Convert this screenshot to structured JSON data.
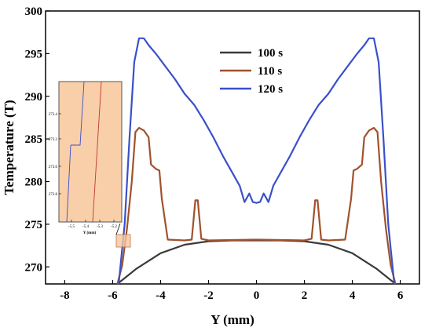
{
  "chart_data": {
    "type": "line",
    "title": "",
    "xlabel": "Y (mm)",
    "ylabel": "Temperature (T)",
    "xlim": [
      -8.8,
      6.8
    ],
    "ylim": [
      268,
      300
    ],
    "xticks": [
      "-8",
      "-6",
      "-4",
      "-2",
      "0",
      "2",
      "4",
      "6"
    ],
    "yticks": [
      "270",
      "275",
      "280",
      "285",
      "290",
      "295",
      "300"
    ],
    "grid": false,
    "legend": "upper-center",
    "colors": {
      "100 s": "#3a3a3a",
      "110 s": "#a0522d",
      "120 s": "#3a50c8"
    },
    "series": [
      {
        "name": "100 s",
        "points": [
          [
            -5.8,
            268
          ],
          [
            -5.0,
            269.8
          ],
          [
            -4.0,
            271.6
          ],
          [
            -3.0,
            272.6
          ],
          [
            -2.0,
            273.0
          ],
          [
            -1.0,
            273.1
          ],
          [
            0.0,
            273.1
          ],
          [
            1.0,
            273.1
          ],
          [
            2.0,
            273.0
          ],
          [
            3.0,
            272.6
          ],
          [
            4.0,
            271.6
          ],
          [
            5.0,
            269.8
          ],
          [
            5.8,
            268
          ]
        ]
      },
      {
        "name": "110 s",
        "points": [
          [
            -5.8,
            268
          ],
          [
            -5.6,
            270.2
          ],
          [
            -5.4,
            274.5
          ],
          [
            -5.2,
            280
          ],
          [
            -5.05,
            285.8
          ],
          [
            -4.9,
            286.3
          ],
          [
            -4.7,
            286.0
          ],
          [
            -4.5,
            285.2
          ],
          [
            -4.4,
            282.0
          ],
          [
            -4.2,
            281.5
          ],
          [
            -4.05,
            281.3
          ],
          [
            -3.95,
            278.0
          ],
          [
            -3.7,
            273.2
          ],
          [
            -3.0,
            273.1
          ],
          [
            -2.7,
            273.2
          ],
          [
            -2.55,
            277.8
          ],
          [
            -2.45,
            277.8
          ],
          [
            -2.3,
            273.3
          ],
          [
            -2.0,
            273.1
          ],
          [
            0.0,
            273.2
          ],
          [
            2.0,
            273.1
          ],
          [
            2.3,
            273.3
          ],
          [
            2.45,
            277.8
          ],
          [
            2.55,
            277.8
          ],
          [
            2.7,
            273.2
          ],
          [
            3.0,
            273.1
          ],
          [
            3.7,
            273.2
          ],
          [
            3.95,
            278.0
          ],
          [
            4.05,
            281.3
          ],
          [
            4.2,
            281.5
          ],
          [
            4.4,
            282.0
          ],
          [
            4.5,
            285.2
          ],
          [
            4.7,
            286.0
          ],
          [
            4.9,
            286.3
          ],
          [
            5.05,
            285.8
          ],
          [
            5.2,
            280
          ],
          [
            5.4,
            274.5
          ],
          [
            5.6,
            270.2
          ],
          [
            5.8,
            268
          ]
        ]
      },
      {
        "name": "120 s",
        "points": [
          [
            -5.75,
            268
          ],
          [
            -5.5,
            275
          ],
          [
            -5.3,
            285
          ],
          [
            -5.1,
            294
          ],
          [
            -4.9,
            296.8
          ],
          [
            -4.7,
            296.8
          ],
          [
            -4.5,
            296.0
          ],
          [
            -4.2,
            295.0
          ],
          [
            -3.8,
            293.5
          ],
          [
            -3.4,
            292.0
          ],
          [
            -3.0,
            290.3
          ],
          [
            -2.6,
            289.0
          ],
          [
            -2.2,
            287.2
          ],
          [
            -1.8,
            285.2
          ],
          [
            -1.4,
            283.0
          ],
          [
            -1.0,
            281.0
          ],
          [
            -0.7,
            279.5
          ],
          [
            -0.5,
            277.6
          ],
          [
            -0.3,
            278.6
          ],
          [
            -0.15,
            277.6
          ],
          [
            0.0,
            277.5
          ],
          [
            0.15,
            277.6
          ],
          [
            0.3,
            278.6
          ],
          [
            0.5,
            277.6
          ],
          [
            0.7,
            279.5
          ],
          [
            1.0,
            281.0
          ],
          [
            1.4,
            283.0
          ],
          [
            1.8,
            285.2
          ],
          [
            2.2,
            287.2
          ],
          [
            2.6,
            289.0
          ],
          [
            3.0,
            290.3
          ],
          [
            3.4,
            292.0
          ],
          [
            3.8,
            293.5
          ],
          [
            4.2,
            295.0
          ],
          [
            4.5,
            296.0
          ],
          [
            4.7,
            296.8
          ],
          [
            4.9,
            296.8
          ],
          [
            5.1,
            294
          ],
          [
            5.3,
            285
          ],
          [
            5.5,
            275
          ],
          [
            5.75,
            268
          ]
        ]
      }
    ],
    "inset": {
      "xticks": [
        "-5.5",
        "-5.4",
        "-5.3",
        "-5.2"
      ],
      "yticks": [
        "273.4",
        "273.2",
        "273.0",
        "272.8"
      ],
      "xlabel": "Y (mm)"
    }
  }
}
